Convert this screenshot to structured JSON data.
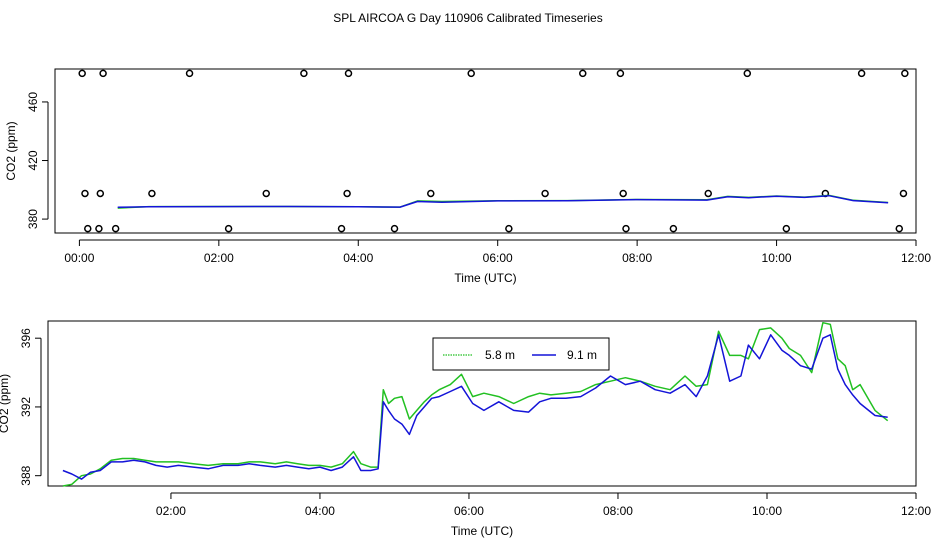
{
  "figure": {
    "title": "SPL AIRCOA G  Day 110906  Calibrated Timeseries"
  },
  "chart_data": [
    {
      "type": "scatter",
      "xlabel": "Time (UTC)",
      "ylabel": "CO2 (ppm)",
      "xlim": [
        -0.35,
        12.0
      ],
      "ylim": [
        370.5,
        482.5
      ],
      "x_ticks": [
        0,
        2,
        4,
        6,
        8,
        10,
        12
      ],
      "x_tick_labels": [
        "00:00",
        "02:00",
        "04:00",
        "06:00",
        "08:00",
        "10:00",
        "12:00"
      ],
      "y_ticks": [
        380,
        420,
        460
      ],
      "y_tick_labels": [
        "380",
        "420",
        "460"
      ],
      "grid": false,
      "calibration_points": [
        {
          "x": 0.04,
          "y": 479.5
        },
        {
          "x": 0.34,
          "y": 479.5
        },
        {
          "x": 1.58,
          "y": 479.5
        },
        {
          "x": 3.22,
          "y": 479.5
        },
        {
          "x": 3.86,
          "y": 479.5
        },
        {
          "x": 5.62,
          "y": 479.5
        },
        {
          "x": 7.22,
          "y": 479.5
        },
        {
          "x": 7.76,
          "y": 479.5
        },
        {
          "x": 9.58,
          "y": 479.5
        },
        {
          "x": 11.22,
          "y": 479.5
        },
        {
          "x": 11.84,
          "y": 479.5
        },
        {
          "x": 0.08,
          "y": 397.5
        },
        {
          "x": 0.3,
          "y": 397.5
        },
        {
          "x": 1.04,
          "y": 397.5
        },
        {
          "x": 2.68,
          "y": 397.5
        },
        {
          "x": 3.84,
          "y": 397.5
        },
        {
          "x": 5.04,
          "y": 397.5
        },
        {
          "x": 6.68,
          "y": 397.5
        },
        {
          "x": 7.8,
          "y": 397.5
        },
        {
          "x": 9.02,
          "y": 397.5
        },
        {
          "x": 10.7,
          "y": 397.5
        },
        {
          "x": 11.82,
          "y": 397.5
        },
        {
          "x": 0.12,
          "y": 373.5
        },
        {
          "x": 0.28,
          "y": 373.5
        },
        {
          "x": 0.52,
          "y": 373.5
        },
        {
          "x": 2.14,
          "y": 373.5
        },
        {
          "x": 3.76,
          "y": 373.5
        },
        {
          "x": 4.52,
          "y": 373.5
        },
        {
          "x": 6.16,
          "y": 373.5
        },
        {
          "x": 7.84,
          "y": 373.5
        },
        {
          "x": 8.52,
          "y": 373.5
        },
        {
          "x": 10.14,
          "y": 373.5
        },
        {
          "x": 11.76,
          "y": 373.5
        }
      ],
      "series": [
        {
          "color": "#22c022",
          "x": [
            0.55,
            1.0,
            2.0,
            3.0,
            4.0,
            4.6,
            4.85,
            5.2,
            6.0,
            7.0,
            8.0,
            9.0,
            9.3,
            9.6,
            10.0,
            10.4,
            10.75,
            11.1,
            11.6
          ],
          "y": [
            387.5,
            388.5,
            388.6,
            388.6,
            388.4,
            388.2,
            392.4,
            392.0,
            392.5,
            392.6,
            393.4,
            393.2,
            395.5,
            394.8,
            395.8,
            395.0,
            396.2,
            392.8,
            391.3
          ]
        },
        {
          "color": "#1414d8",
          "x": [
            0.55,
            1.0,
            2.0,
            3.0,
            4.0,
            4.6,
            4.85,
            5.2,
            6.0,
            7.0,
            8.0,
            9.0,
            9.3,
            9.6,
            10.0,
            10.4,
            10.75,
            11.1,
            11.6
          ],
          "y": [
            388.1,
            388.4,
            388.5,
            388.6,
            388.4,
            388.2,
            392.0,
            391.5,
            392.4,
            392.5,
            393.3,
            393.0,
            395.3,
            394.6,
            395.6,
            394.8,
            396.0,
            392.6,
            391.1
          ]
        }
      ]
    },
    {
      "type": "line",
      "xlabel": "Time (UTC)",
      "ylabel": "CO2 (ppm)",
      "xlim": [
        0.35,
        12.0
      ],
      "ylim": [
        387.4,
        397.0
      ],
      "x_ticks": [
        2,
        4,
        6,
        8,
        10,
        12
      ],
      "x_tick_labels": [
        "02:00",
        "04:00",
        "06:00",
        "08:00",
        "10:00",
        "12:00"
      ],
      "y_ticks": [
        388,
        392,
        396
      ],
      "y_tick_labels": [
        "388",
        "392",
        "396"
      ],
      "grid": false,
      "legend_position": "top-center",
      "series": [
        {
          "name": "5.8 m",
          "color": "#22c022",
          "x": [
            0.55,
            0.67,
            0.8,
            0.92,
            1.05,
            1.2,
            1.35,
            1.5,
            1.65,
            1.8,
            1.95,
            2.1,
            2.3,
            2.5,
            2.7,
            2.9,
            3.05,
            3.2,
            3.4,
            3.55,
            3.7,
            3.85,
            4.0,
            4.15,
            4.3,
            4.45,
            4.55,
            4.68,
            4.78,
            4.85,
            4.92,
            5.0,
            5.1,
            5.2,
            5.3,
            5.4,
            5.5,
            5.6,
            5.75,
            5.9,
            6.05,
            6.2,
            6.4,
            6.6,
            6.8,
            6.95,
            7.1,
            7.3,
            7.5,
            7.7,
            7.9,
            8.1,
            8.3,
            8.5,
            8.7,
            8.9,
            9.05,
            9.2,
            9.35,
            9.5,
            9.65,
            9.75,
            9.9,
            10.05,
            10.2,
            10.3,
            10.45,
            10.6,
            10.75,
            10.85,
            10.95,
            11.05,
            11.15,
            11.25,
            11.45,
            11.62
          ],
          "y": [
            387.4,
            387.5,
            388.0,
            388.1,
            388.4,
            388.9,
            389.0,
            389.0,
            388.9,
            388.8,
            388.8,
            388.8,
            388.7,
            388.6,
            388.7,
            388.7,
            388.8,
            388.8,
            388.7,
            388.8,
            388.7,
            388.6,
            388.6,
            388.5,
            388.7,
            389.4,
            388.7,
            388.5,
            388.5,
            393.0,
            392.2,
            392.5,
            392.6,
            391.3,
            391.8,
            392.3,
            392.7,
            393.0,
            393.3,
            393.9,
            392.6,
            392.8,
            392.6,
            392.2,
            392.6,
            392.8,
            392.7,
            392.8,
            392.9,
            393.3,
            393.5,
            393.7,
            393.5,
            393.2,
            393.0,
            393.8,
            393.2,
            393.3,
            396.4,
            395.0,
            395.0,
            394.8,
            396.5,
            396.6,
            396.0,
            395.4,
            395.0,
            394.0,
            396.9,
            396.8,
            394.8,
            394.4,
            393.0,
            393.3,
            391.8,
            391.2
          ]
        },
        {
          "name": "9.1 m",
          "color": "#1414d8",
          "x": [
            0.55,
            0.67,
            0.8,
            0.92,
            1.05,
            1.2,
            1.35,
            1.5,
            1.65,
            1.8,
            1.95,
            2.1,
            2.3,
            2.5,
            2.7,
            2.9,
            3.05,
            3.2,
            3.4,
            3.55,
            3.7,
            3.85,
            4.0,
            4.15,
            4.3,
            4.45,
            4.55,
            4.68,
            4.78,
            4.85,
            4.92,
            5.0,
            5.1,
            5.2,
            5.3,
            5.4,
            5.5,
            5.6,
            5.75,
            5.9,
            6.05,
            6.2,
            6.4,
            6.6,
            6.8,
            6.95,
            7.1,
            7.3,
            7.5,
            7.7,
            7.9,
            8.1,
            8.3,
            8.5,
            8.7,
            8.9,
            9.05,
            9.2,
            9.35,
            9.5,
            9.65,
            9.75,
            9.9,
            10.05,
            10.2,
            10.3,
            10.45,
            10.6,
            10.75,
            10.85,
            10.95,
            11.05,
            11.15,
            11.25,
            11.45,
            11.62
          ],
          "y": [
            388.3,
            388.1,
            387.8,
            388.2,
            388.3,
            388.8,
            388.8,
            388.9,
            388.8,
            388.6,
            388.5,
            388.6,
            388.5,
            388.4,
            388.6,
            388.6,
            388.7,
            388.6,
            388.5,
            388.6,
            388.5,
            388.4,
            388.5,
            388.3,
            388.5,
            389.1,
            388.3,
            388.3,
            388.4,
            392.3,
            391.8,
            391.3,
            391.0,
            390.4,
            391.5,
            392.0,
            392.5,
            392.6,
            392.9,
            393.2,
            392.2,
            391.8,
            392.3,
            391.8,
            391.7,
            392.3,
            392.5,
            392.5,
            392.6,
            393.1,
            393.8,
            393.3,
            393.5,
            393.0,
            392.8,
            393.3,
            392.6,
            393.8,
            396.2,
            393.5,
            393.8,
            395.6,
            394.8,
            396.2,
            395.3,
            395.0,
            394.4,
            394.2,
            396.0,
            396.2,
            394.2,
            393.3,
            392.7,
            392.2,
            391.5,
            391.4
          ]
        }
      ]
    }
  ]
}
